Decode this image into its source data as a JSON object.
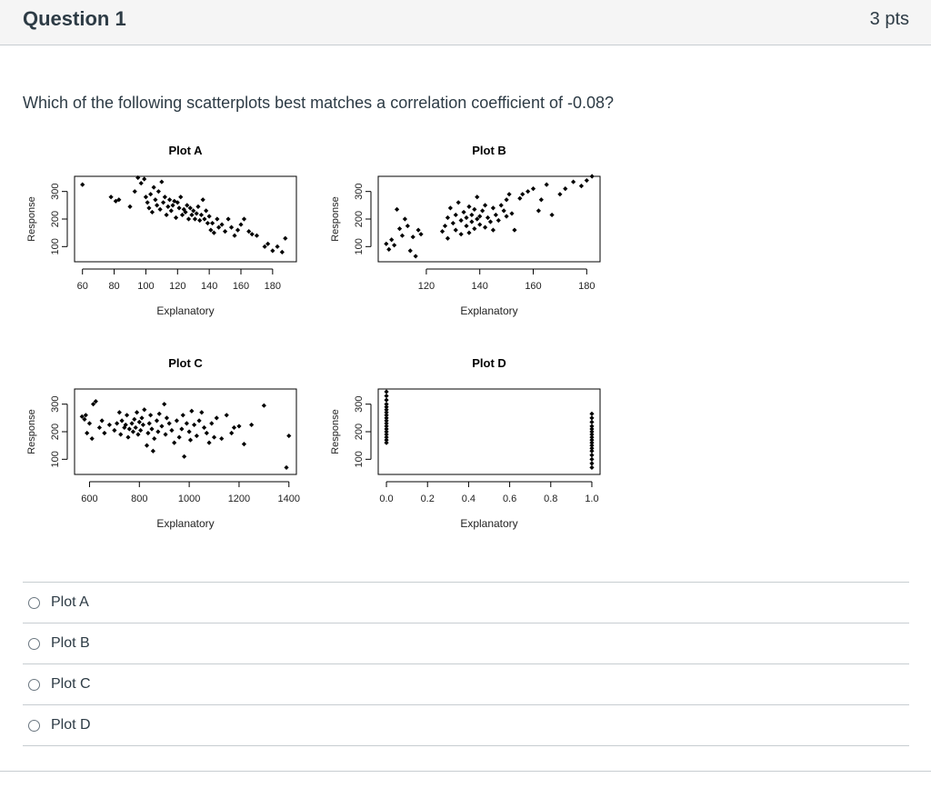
{
  "question": {
    "title": "Question 1",
    "points": "3 pts",
    "text": "Which of the following scatterplots best matches a correlation coefficient of -0.08?"
  },
  "answers": [
    {
      "label": "Plot A"
    },
    {
      "label": "Plot B"
    },
    {
      "label": "Plot C"
    },
    {
      "label": "Plot D"
    }
  ],
  "chart_data": [
    {
      "type": "scatter",
      "title": "Plot A",
      "xlabel": "Explanatory",
      "ylabel": "Response",
      "xticks": [
        60,
        80,
        100,
        120,
        140,
        160,
        180
      ],
      "yticks": [
        100,
        200,
        300
      ],
      "xlim": [
        55,
        195
      ],
      "ylim": [
        45,
        355
      ],
      "points": [
        [
          60,
          325
        ],
        [
          78,
          280
        ],
        [
          81,
          265
        ],
        [
          83,
          270
        ],
        [
          90,
          245
        ],
        [
          93,
          300
        ],
        [
          95,
          350
        ],
        [
          97,
          330
        ],
        [
          99,
          345
        ],
        [
          100,
          280
        ],
        [
          101,
          260
        ],
        [
          102,
          240
        ],
        [
          103,
          290
        ],
        [
          104,
          225
        ],
        [
          105,
          315
        ],
        [
          106,
          270
        ],
        [
          107,
          250
        ],
        [
          108,
          300
        ],
        [
          109,
          235
        ],
        [
          110,
          335
        ],
        [
          111,
          260
        ],
        [
          112,
          280
        ],
        [
          113,
          215
        ],
        [
          114,
          245
        ],
        [
          115,
          270
        ],
        [
          116,
          230
        ],
        [
          117,
          250
        ],
        [
          118,
          265
        ],
        [
          119,
          205
        ],
        [
          120,
          260
        ],
        [
          121,
          240
        ],
        [
          122,
          280
        ],
        [
          123,
          215
        ],
        [
          124,
          235
        ],
        [
          125,
          225
        ],
        [
          126,
          250
        ],
        [
          127,
          200
        ],
        [
          128,
          240
        ],
        [
          129,
          215
        ],
        [
          130,
          230
        ],
        [
          131,
          200
        ],
        [
          132,
          220
        ],
        [
          133,
          245
        ],
        [
          134,
          195
        ],
        [
          135,
          215
        ],
        [
          136,
          270
        ],
        [
          137,
          200
        ],
        [
          138,
          230
        ],
        [
          139,
          185
        ],
        [
          140,
          210
        ],
        [
          141,
          160
        ],
        [
          142,
          185
        ],
        [
          143,
          150
        ],
        [
          145,
          200
        ],
        [
          146,
          170
        ],
        [
          148,
          180
        ],
        [
          150,
          155
        ],
        [
          152,
          200
        ],
        [
          154,
          170
        ],
        [
          156,
          140
        ],
        [
          158,
          160
        ],
        [
          160,
          180
        ],
        [
          162,
          200
        ],
        [
          165,
          155
        ],
        [
          167,
          145
        ],
        [
          170,
          140
        ],
        [
          175,
          100
        ],
        [
          177,
          110
        ],
        [
          180,
          85
        ],
        [
          183,
          100
        ],
        [
          186,
          80
        ],
        [
          188,
          130
        ]
      ]
    },
    {
      "type": "scatter",
      "title": "Plot B",
      "xlabel": "Explanatory",
      "ylabel": "Response",
      "xticks": [
        120,
        140,
        160,
        180
      ],
      "yticks": [
        100,
        200,
        300
      ],
      "xlim": [
        102,
        185
      ],
      "ylim": [
        45,
        355
      ],
      "points": [
        [
          105,
          110
        ],
        [
          106,
          90
        ],
        [
          107,
          125
        ],
        [
          108,
          105
        ],
        [
          109,
          235
        ],
        [
          110,
          165
        ],
        [
          111,
          140
        ],
        [
          112,
          200
        ],
        [
          113,
          175
        ],
        [
          114,
          85
        ],
        [
          115,
          135
        ],
        [
          116,
          65
        ],
        [
          117,
          160
        ],
        [
          118,
          145
        ],
        [
          126,
          155
        ],
        [
          127,
          175
        ],
        [
          128,
          205
        ],
        [
          128,
          130
        ],
        [
          129,
          240
        ],
        [
          130,
          185
        ],
        [
          131,
          215
        ],
        [
          131,
          160
        ],
        [
          132,
          260
        ],
        [
          133,
          195
        ],
        [
          133,
          145
        ],
        [
          134,
          225
        ],
        [
          135,
          175
        ],
        [
          135,
          205
        ],
        [
          136,
          245
        ],
        [
          136,
          150
        ],
        [
          137,
          215
        ],
        [
          137,
          190
        ],
        [
          138,
          235
        ],
        [
          138,
          165
        ],
        [
          139,
          280
        ],
        [
          139,
          200
        ],
        [
          140,
          210
        ],
        [
          140,
          180
        ],
        [
          141,
          230
        ],
        [
          142,
          250
        ],
        [
          142,
          170
        ],
        [
          143,
          205
        ],
        [
          144,
          190
        ],
        [
          145,
          240
        ],
        [
          145,
          160
        ],
        [
          146,
          215
        ],
        [
          147,
          195
        ],
        [
          148,
          250
        ],
        [
          149,
          230
        ],
        [
          150,
          270
        ],
        [
          150,
          210
        ],
        [
          151,
          290
        ],
        [
          152,
          220
        ],
        [
          153,
          160
        ],
        [
          155,
          275
        ],
        [
          156,
          290
        ],
        [
          158,
          300
        ],
        [
          160,
          310
        ],
        [
          162,
          230
        ],
        [
          163,
          270
        ],
        [
          165,
          325
        ],
        [
          167,
          215
        ],
        [
          170,
          290
        ],
        [
          172,
          310
        ],
        [
          175,
          335
        ],
        [
          178,
          320
        ],
        [
          180,
          340
        ],
        [
          182,
          355
        ]
      ]
    },
    {
      "type": "scatter",
      "title": "Plot C",
      "xlabel": "Explanatory",
      "ylabel": "Response",
      "xticks": [
        600,
        800,
        1000,
        1200,
        1400
      ],
      "yticks": [
        100,
        200,
        300
      ],
      "xlim": [
        540,
        1430
      ],
      "ylim": [
        45,
        355
      ],
      "points": [
        [
          570,
          255
        ],
        [
          580,
          245
        ],
        [
          585,
          260
        ],
        [
          590,
          195
        ],
        [
          600,
          230
        ],
        [
          610,
          175
        ],
        [
          615,
          300
        ],
        [
          625,
          310
        ],
        [
          640,
          215
        ],
        [
          650,
          240
        ],
        [
          660,
          195
        ],
        [
          680,
          225
        ],
        [
          700,
          205
        ],
        [
          710,
          230
        ],
        [
          720,
          270
        ],
        [
          725,
          190
        ],
        [
          730,
          240
        ],
        [
          740,
          215
        ],
        [
          745,
          225
        ],
        [
          750,
          260
        ],
        [
          755,
          180
        ],
        [
          760,
          210
        ],
        [
          770,
          230
        ],
        [
          775,
          200
        ],
        [
          780,
          245
        ],
        [
          785,
          215
        ],
        [
          790,
          270
        ],
        [
          795,
          190
        ],
        [
          800,
          235
        ],
        [
          805,
          205
        ],
        [
          810,
          250
        ],
        [
          815,
          225
        ],
        [
          820,
          280
        ],
        [
          830,
          150
        ],
        [
          835,
          195
        ],
        [
          840,
          230
        ],
        [
          845,
          260
        ],
        [
          850,
          210
        ],
        [
          855,
          130
        ],
        [
          860,
          175
        ],
        [
          870,
          240
        ],
        [
          875,
          200
        ],
        [
          880,
          265
        ],
        [
          890,
          220
        ],
        [
          900,
          300
        ],
        [
          905,
          190
        ],
        [
          910,
          250
        ],
        [
          920,
          230
        ],
        [
          930,
          205
        ],
        [
          940,
          160
        ],
        [
          950,
          240
        ],
        [
          960,
          180
        ],
        [
          970,
          210
        ],
        [
          975,
          260
        ],
        [
          980,
          110
        ],
        [
          990,
          230
        ],
        [
          1000,
          200
        ],
        [
          1005,
          170
        ],
        [
          1010,
          275
        ],
        [
          1020,
          225
        ],
        [
          1030,
          185
        ],
        [
          1040,
          240
        ],
        [
          1050,
          270
        ],
        [
          1060,
          215
        ],
        [
          1070,
          195
        ],
        [
          1080,
          160
        ],
        [
          1090,
          230
        ],
        [
          1100,
          180
        ],
        [
          1110,
          250
        ],
        [
          1130,
          175
        ],
        [
          1150,
          260
        ],
        [
          1170,
          195
        ],
        [
          1180,
          215
        ],
        [
          1200,
          220
        ],
        [
          1220,
          155
        ],
        [
          1250,
          225
        ],
        [
          1300,
          295
        ],
        [
          1400,
          185
        ],
        [
          1390,
          70
        ]
      ]
    },
    {
      "type": "scatter",
      "title": "Plot D",
      "xlabel": "Explanatory",
      "ylabel": "Response",
      "xticks": [
        0.0,
        0.2,
        0.4,
        0.6,
        0.8,
        1.0
      ],
      "yticks": [
        100,
        200,
        300
      ],
      "xlim": [
        -0.04,
        1.04
      ],
      "ylim": [
        45,
        355
      ],
      "points": [
        [
          0,
          345
        ],
        [
          0,
          330
        ],
        [
          0,
          315
        ],
        [
          0,
          300
        ],
        [
          0,
          290
        ],
        [
          0,
          280
        ],
        [
          0,
          270
        ],
        [
          0,
          260
        ],
        [
          0,
          250
        ],
        [
          0,
          240
        ],
        [
          0,
          230
        ],
        [
          0,
          220
        ],
        [
          0,
          210
        ],
        [
          0,
          200
        ],
        [
          0,
          190
        ],
        [
          0,
          180
        ],
        [
          0,
          170
        ],
        [
          0,
          160
        ],
        [
          1,
          265
        ],
        [
          1,
          250
        ],
        [
          1,
          235
        ],
        [
          1,
          220
        ],
        [
          1,
          210
        ],
        [
          1,
          200
        ],
        [
          1,
          190
        ],
        [
          1,
          180
        ],
        [
          1,
          170
        ],
        [
          1,
          160
        ],
        [
          1,
          150
        ],
        [
          1,
          140
        ],
        [
          1,
          130
        ],
        [
          1,
          115
        ],
        [
          1,
          100
        ],
        [
          1,
          85
        ],
        [
          1,
          70
        ]
      ]
    }
  ]
}
